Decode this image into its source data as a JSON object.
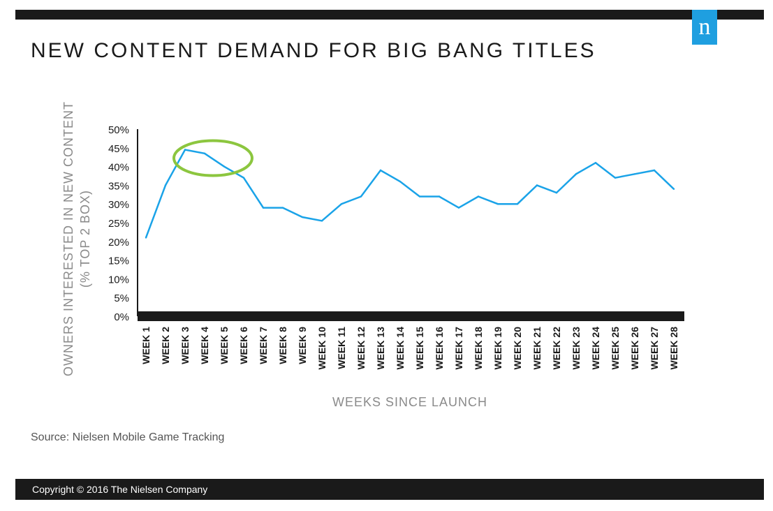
{
  "header": {
    "title": "NEW CONTENT DEMAND FOR BIG BANG TITLES",
    "logo_text": "n"
  },
  "footer": {
    "source": "Source: Nielsen Mobile Game Tracking",
    "copyright": "Copyright © 2016 The Nielsen Company"
  },
  "colors": {
    "line": "#1aa3e8",
    "highlight": "#8cc63f",
    "bar": "#1a1a1a",
    "logo": "#1f9fe0"
  },
  "chart_data": {
    "type": "line",
    "title": "NEW CONTENT DEMAND FOR BIG BANG TITLES",
    "xlabel": "WEEKS SINCE LAUNCH",
    "ylabel_lines": [
      "OWNERS INTERESTED IN NEW CONTENT",
      "(% TOP 2 BOX)"
    ],
    "ylim": [
      0,
      50
    ],
    "y_ticks": [
      "0%",
      "5%",
      "10%",
      "15%",
      "20%",
      "25%",
      "30%",
      "35%",
      "40%",
      "45%",
      "50%"
    ],
    "categories": [
      "WEEK 1",
      "WEEK 2",
      "WEEK 3",
      "WEEK 4",
      "WEEK 5",
      "WEEK 6",
      "WEEK 7",
      "WEEK 8",
      "WEEK 9",
      "WEEK 10",
      "WEEK 11",
      "WEEK 12",
      "WEEK 13",
      "WEEK 14",
      "WEEK 15",
      "WEEK 16",
      "WEEK 17",
      "WEEK 18",
      "WEEK 19",
      "WEEK 20",
      "WEEK 21",
      "WEEK 22",
      "WEEK 23",
      "WEEK 24",
      "WEEK 25",
      "WEEK 26",
      "WEEK 27",
      "WEEK 28"
    ],
    "series": [
      {
        "values": [
          21,
          35,
          44.5,
          43.5,
          40,
          37,
          29,
          29,
          26.5,
          25.5,
          30,
          32,
          39,
          36,
          32,
          32,
          29,
          32,
          30,
          30,
          35,
          33,
          38,
          41,
          37,
          38,
          39,
          34
        ]
      }
    ],
    "highlight": {
      "categories": [
        "WEEK 3",
        "WEEK 5"
      ],
      "shape": "ellipse"
    },
    "grid": false
  }
}
